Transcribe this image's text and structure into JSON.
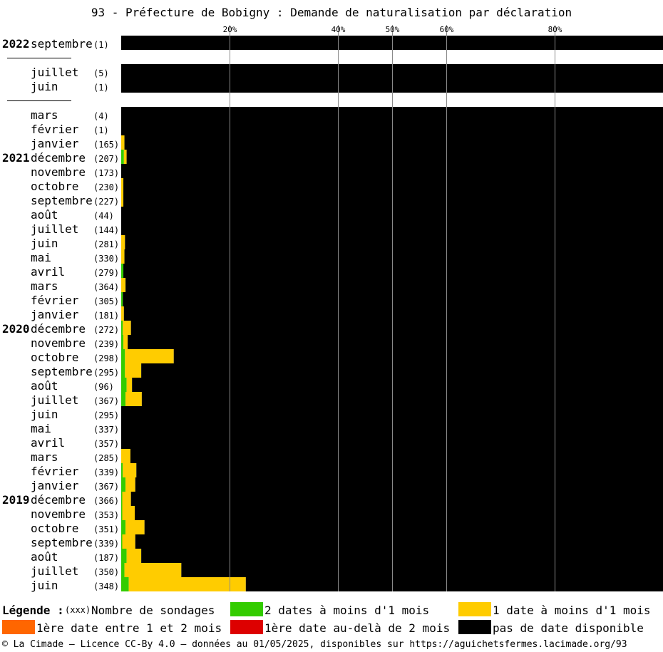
{
  "title": "93 - Préfecture de Bobigny : Demande de naturalisation par déclaration",
  "chart_data": {
    "type": "bar",
    "orientation": "horizontal",
    "stacked": true,
    "xlim": [
      0,
      100
    ],
    "x_ticks": [
      20,
      40,
      50,
      60,
      80
    ],
    "x_tick_labels": [
      "20%",
      "40%",
      "50%",
      "60%",
      "80%"
    ],
    "grid": "vertical lines at tick positions",
    "series": [
      {
        "name": "2 dates à moins d'1 mois",
        "key": "green",
        "color": "#33cc00"
      },
      {
        "name": "1 date à moins d'1 mois",
        "key": "yellow",
        "color": "#ffcc00"
      },
      {
        "name": "1ère date entre 1 et 2 mois",
        "key": "orange",
        "color": "#ff6600"
      },
      {
        "name": "1ère date au-delà de 2 mois",
        "key": "red",
        "color": "#dd0000"
      },
      {
        "name": "pas de date disponible",
        "key": "black",
        "color": "#000000"
      }
    ],
    "rows": [
      {
        "year": "2022",
        "month": "septembre",
        "count": "(1)",
        "green": 0,
        "yellow": 0,
        "orange": 0,
        "red": 0
      },
      {
        "gap": true
      },
      {
        "year": "",
        "month": "juillet",
        "count": "(5)",
        "green": 0,
        "yellow": 0,
        "orange": 0,
        "red": 0
      },
      {
        "year": "",
        "month": "juin",
        "count": "(1)",
        "green": 0,
        "yellow": 0,
        "orange": 0,
        "red": 0
      },
      {
        "gap": true
      },
      {
        "year": "",
        "month": "mars",
        "count": "(4)",
        "green": 0,
        "yellow": 0,
        "orange": 0,
        "red": 0
      },
      {
        "year": "",
        "month": "février",
        "count": "(1)",
        "green": 0,
        "yellow": 0,
        "orange": 0,
        "red": 0
      },
      {
        "year": "",
        "month": "janvier",
        "count": "(165)",
        "green": 0,
        "yellow": 0.6,
        "orange": 0,
        "red": 0
      },
      {
        "year": "2021",
        "month": "décembre",
        "count": "(207)",
        "green": 0.5,
        "yellow": 0.5,
        "orange": 0,
        "red": 0
      },
      {
        "year": "",
        "month": "novembre",
        "count": "(173)",
        "green": 0,
        "yellow": 0,
        "orange": 0,
        "red": 0
      },
      {
        "year": "",
        "month": "octobre",
        "count": "(230)",
        "green": 0,
        "yellow": 0.4,
        "orange": 0,
        "red": 0
      },
      {
        "year": "",
        "month": "septembre",
        "count": "(227)",
        "green": 0,
        "yellow": 0.4,
        "orange": 0,
        "red": 0
      },
      {
        "year": "",
        "month": "août",
        "count": "(44)",
        "green": 0,
        "yellow": 0,
        "orange": 0,
        "red": 0
      },
      {
        "year": "",
        "month": "juillet",
        "count": "(144)",
        "green": 0,
        "yellow": 0,
        "orange": 0,
        "red": 0
      },
      {
        "year": "",
        "month": "juin",
        "count": "(281)",
        "green": 0,
        "yellow": 0.7,
        "orange": 0,
        "red": 0
      },
      {
        "year": "",
        "month": "mai",
        "count": "(330)",
        "green": 0,
        "yellow": 0.6,
        "orange": 0,
        "red": 0
      },
      {
        "year": "",
        "month": "avril",
        "count": "(279)",
        "green": 0.4,
        "yellow": 0,
        "orange": 0,
        "red": 0
      },
      {
        "year": "",
        "month": "mars",
        "count": "(364)",
        "green": 0,
        "yellow": 0.8,
        "orange": 0,
        "red": 0
      },
      {
        "year": "",
        "month": "février",
        "count": "(305)",
        "green": 0.3,
        "yellow": 0,
        "orange": 0,
        "red": 0
      },
      {
        "year": "",
        "month": "janvier",
        "count": "(181)",
        "green": 0,
        "yellow": 0.5,
        "orange": 0,
        "red": 0
      },
      {
        "year": "2020",
        "month": "décembre",
        "count": "(272)",
        "green": 0.3,
        "yellow": 1.5,
        "orange": 0,
        "red": 0
      },
      {
        "year": "",
        "month": "novembre",
        "count": "(239)",
        "green": 0.4,
        "yellow": 0.8,
        "orange": 0,
        "red": 0
      },
      {
        "year": "",
        "month": "octobre",
        "count": "(298)",
        "green": 0.7,
        "yellow": 9.0,
        "orange": 0,
        "red": 0
      },
      {
        "year": "",
        "month": "septembre",
        "count": "(295)",
        "green": 0.7,
        "yellow": 3.0,
        "orange": 0,
        "red": 0
      },
      {
        "year": "",
        "month": "août",
        "count": "(96)",
        "green": 1.0,
        "yellow": 1.0,
        "orange": 0,
        "red": 0
      },
      {
        "year": "",
        "month": "juillet",
        "count": "(367)",
        "green": 0.8,
        "yellow": 3.0,
        "orange": 0,
        "red": 0
      },
      {
        "year": "",
        "month": "juin",
        "count": "(295)",
        "green": 0,
        "yellow": 0,
        "orange": 0,
        "red": 0
      },
      {
        "year": "",
        "month": "mai",
        "count": "(337)",
        "green": 0,
        "yellow": 0,
        "orange": 0,
        "red": 0
      },
      {
        "year": "",
        "month": "avril",
        "count": "(357)",
        "green": 0,
        "yellow": 0,
        "orange": 0,
        "red": 0
      },
      {
        "year": "",
        "month": "mars",
        "count": "(285)",
        "green": 0,
        "yellow": 1.7,
        "orange": 0,
        "red": 0
      },
      {
        "year": "",
        "month": "février",
        "count": "(339)",
        "green": 0.3,
        "yellow": 2.5,
        "orange": 0,
        "red": 0
      },
      {
        "year": "",
        "month": "janvier",
        "count": "(367)",
        "green": 0.8,
        "yellow": 1.8,
        "orange": 0,
        "red": 0
      },
      {
        "year": "2019",
        "month": "décembre",
        "count": "(366)",
        "green": 0.2,
        "yellow": 1.6,
        "orange": 0,
        "red": 0
      },
      {
        "year": "",
        "month": "novembre",
        "count": "(353)",
        "green": 0.2,
        "yellow": 2.3,
        "orange": 0,
        "red": 0
      },
      {
        "year": "",
        "month": "octobre",
        "count": "(351)",
        "green": 0.8,
        "yellow": 3.5,
        "orange": 0,
        "red": 0
      },
      {
        "year": "",
        "month": "septembre",
        "count": "(339)",
        "green": 0.2,
        "yellow": 2.4,
        "orange": 0,
        "red": 0
      },
      {
        "year": "",
        "month": "août",
        "count": "(187)",
        "green": 1.0,
        "yellow": 2.7,
        "orange": 0,
        "red": 0
      },
      {
        "year": "",
        "month": "juillet",
        "count": "(350)",
        "green": 0.6,
        "yellow": 10.5,
        "orange": 0,
        "red": 0
      },
      {
        "year": "",
        "month": "juin",
        "count": "(348)",
        "green": 1.4,
        "yellow": 21.6,
        "orange": 0,
        "red": 0
      }
    ]
  },
  "legend": {
    "title": "Légende :",
    "count_hint": "(xxx)",
    "count_label": "Nombre de sondages",
    "items": [
      {
        "label": "2 dates à moins d'1 mois",
        "color": "#33cc00"
      },
      {
        "label": "1 date à moins d'1 mois",
        "color": "#ffcc00"
      },
      {
        "label": "1ère date entre 1 et 2 mois",
        "color": "#ff6600"
      },
      {
        "label": "1ère date au-delà de 2 mois",
        "color": "#dd0000"
      },
      {
        "label": "pas de date disponible",
        "color": "#000000"
      }
    ]
  },
  "footer": "© La Cimade — Licence CC-By 4.0 — données au 01/05/2025, disponibles sur https://aguichetsfermes.lacimade.org/93"
}
